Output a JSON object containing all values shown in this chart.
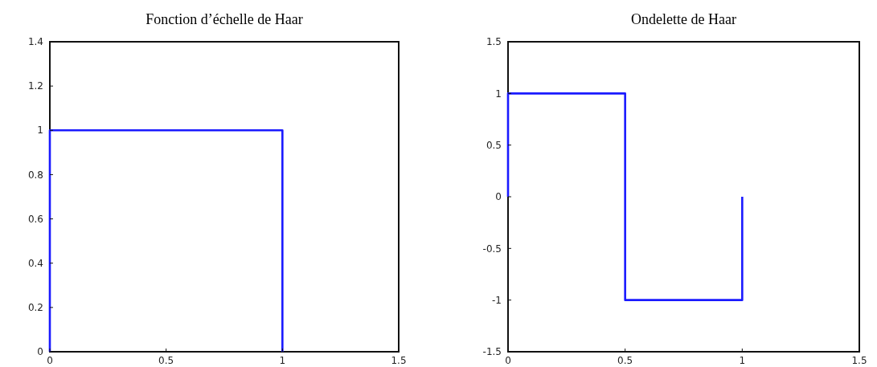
{
  "chart_data": [
    {
      "type": "line",
      "title": "Fonction d’échelle de Haar",
      "x": [
        0,
        0,
        0.5,
        1,
        1
      ],
      "series": [
        {
          "color": "#1a1aff",
          "values": [
            0,
            1,
            1,
            1,
            0
          ]
        }
      ],
      "xlim": [
        0,
        1.5
      ],
      "xticks": [
        0,
        0.5,
        1,
        1.5
      ],
      "ylim": [
        0,
        1.4
      ],
      "yticks": [
        0,
        0.2,
        0.4,
        0.6,
        0.8,
        1,
        1.2,
        1.4
      ],
      "grid": false
    },
    {
      "type": "line",
      "title": "Ondelette de Haar",
      "x": [
        0,
        0,
        0.5,
        0.5,
        1,
        1
      ],
      "series": [
        {
          "color": "#1a1aff",
          "values": [
            0,
            1,
            1,
            -1,
            -1,
            0
          ]
        }
      ],
      "xlim": [
        0,
        1.5
      ],
      "xticks": [
        0,
        0.5,
        1,
        1.5
      ],
      "ylim": [
        -1.5,
        1.5
      ],
      "yticks": [
        -1.5,
        -1,
        -0.5,
        0,
        0.5,
        1,
        1.5
      ],
      "grid": false
    }
  ]
}
